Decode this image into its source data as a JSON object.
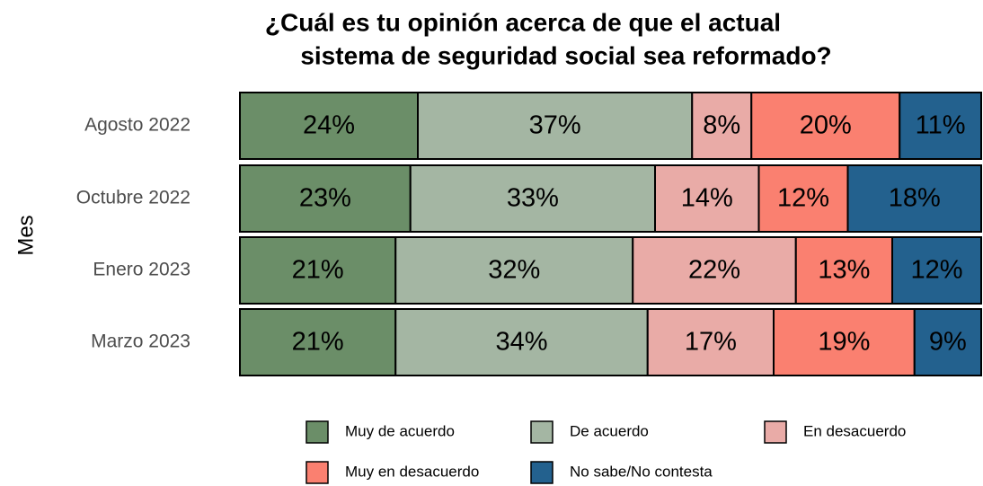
{
  "chart_data": {
    "type": "stacked_bar_horizontal",
    "title": [
      "¿Cuál es tu opinión acerca de que el actual",
      "sistema de seguridad social sea reformado?"
    ],
    "ylabel": "Mes",
    "categories": [
      "Agosto 2022",
      "Octubre 2022",
      "Enero 2023",
      "Marzo 2023"
    ],
    "xlim": [
      0,
      100
    ],
    "series": [
      {
        "name": "Muy de acuerdo",
        "color": "#6b8e68",
        "values": [
          24,
          23,
          21,
          21
        ],
        "value_labels": [
          "24%",
          "23%",
          "21%",
          "21%"
        ]
      },
      {
        "name": "De acuerdo",
        "color": "#a4b6a3",
        "values": [
          37,
          33,
          32,
          34
        ],
        "value_labels": [
          "37%",
          "33%",
          "32%",
          "34%"
        ]
      },
      {
        "name": "En desacuerdo",
        "color": "#e9aba7",
        "values": [
          8,
          14,
          22,
          17
        ],
        "value_labels": [
          "8%",
          "14%",
          "22%",
          "17%"
        ]
      },
      {
        "name": "Muy en desacuerdo",
        "color": "#fa8070",
        "values": [
          20,
          12,
          13,
          19
        ],
        "value_labels": [
          "20%",
          "12%",
          "13%",
          "19%"
        ]
      },
      {
        "name": "No sabe/No contesta",
        "color": "#23618e",
        "values": [
          11,
          18,
          12,
          9
        ],
        "value_labels": [
          "11%",
          "18%",
          "12%",
          "9%"
        ]
      }
    ],
    "legend": "bottom"
  }
}
